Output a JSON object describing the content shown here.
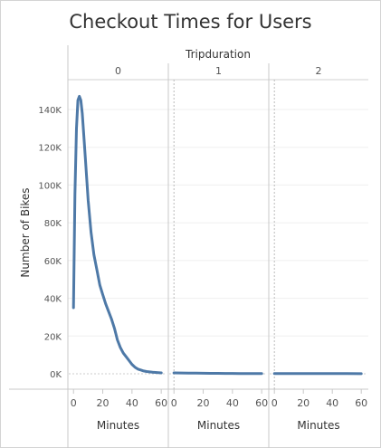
{
  "chart_data": {
    "type": "line",
    "title": "Checkout Times for Users",
    "column_header": "Tripduration",
    "ylabel": "Number of Bikes",
    "ylim": [
      0,
      155000
    ],
    "y_ticks": [
      0,
      20000,
      40000,
      60000,
      80000,
      100000,
      120000,
      140000
    ],
    "y_tick_labels": [
      "0K",
      "20K",
      "40K",
      "60K",
      "80K",
      "100K",
      "120K",
      "140K"
    ],
    "panels": [
      {
        "label": "0",
        "xlabel": "Minutes",
        "xlim": [
          -2,
          63
        ],
        "x_ticks": [
          0,
          20,
          40,
          60
        ],
        "x_tick_labels": [
          "0",
          "20",
          "40",
          "60"
        ],
        "x": [
          0,
          1,
          2,
          3,
          4,
          5,
          6,
          7,
          8,
          10,
          12,
          14,
          16,
          18,
          20,
          22,
          24,
          26,
          28,
          30,
          32,
          34,
          36,
          38,
          40,
          42,
          44,
          46,
          48,
          50,
          52,
          54,
          56,
          58,
          60
        ],
        "values": [
          35000,
          95000,
          130000,
          145000,
          147000,
          145000,
          138000,
          127000,
          115000,
          92000,
          75000,
          63000,
          55000,
          47000,
          42000,
          37000,
          33000,
          29000,
          24000,
          18000,
          14000,
          11000,
          9000,
          7000,
          5000,
          3500,
          2500,
          2000,
          1500,
          1200,
          1000,
          800,
          700,
          600,
          500
        ]
      },
      {
        "label": "1",
        "xlabel": "Minutes",
        "xlim": [
          -2,
          63
        ],
        "x_ticks": [
          0,
          20,
          40,
          60
        ],
        "x_tick_labels": [
          "0",
          "20",
          "40",
          "60"
        ],
        "x": [
          0,
          5,
          10,
          15,
          20,
          25,
          30,
          35,
          40,
          45,
          50,
          55,
          60
        ],
        "values": [
          500,
          450,
          400,
          350,
          300,
          260,
          230,
          200,
          180,
          160,
          150,
          140,
          130
        ]
      },
      {
        "label": "2",
        "xlabel": "Minutes",
        "xlim": [
          -2,
          63
        ],
        "x_ticks": [
          0,
          20,
          40,
          60
        ],
        "x_tick_labels": [
          "0",
          "20",
          "40",
          "60"
        ],
        "x": [
          0,
          10,
          20,
          30,
          40,
          50,
          60
        ],
        "values": [
          120,
          110,
          100,
          90,
          80,
          75,
          70
        ]
      }
    ],
    "grid": true,
    "line_color": "#4e79a7"
  }
}
